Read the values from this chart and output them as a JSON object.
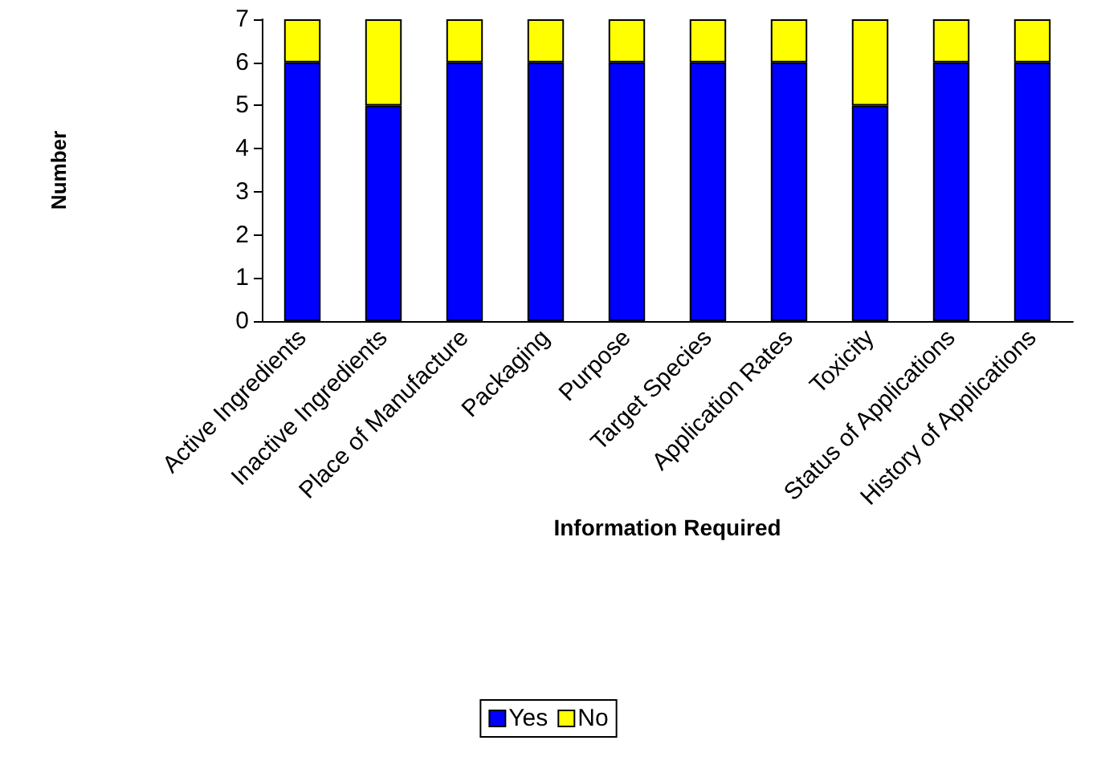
{
  "chart_data": {
    "type": "bar",
    "stacked": true,
    "xlabel": "Information Required",
    "ylabel": "Number",
    "categories": [
      "Active Ingredients",
      "Inactive Ingredients",
      "Place of Manufacture",
      "Packaging",
      "Purpose",
      "Target Species",
      "Application Rates",
      "Toxicity",
      "Status of Applications",
      "History of Applications"
    ],
    "series": [
      {
        "name": "Yes",
        "color": "#0000ff",
        "values": [
          6,
          5,
          6,
          6,
          6,
          6,
          6,
          5,
          6,
          6
        ]
      },
      {
        "name": "No",
        "color": "#ffff00",
        "values": [
          1,
          2,
          1,
          1,
          1,
          1,
          1,
          2,
          1,
          1
        ]
      }
    ],
    "ylim": [
      0,
      7
    ],
    "yticks": [
      0,
      1,
      2,
      3,
      4,
      5,
      6,
      7
    ],
    "grid": false,
    "legend": "bottom"
  }
}
